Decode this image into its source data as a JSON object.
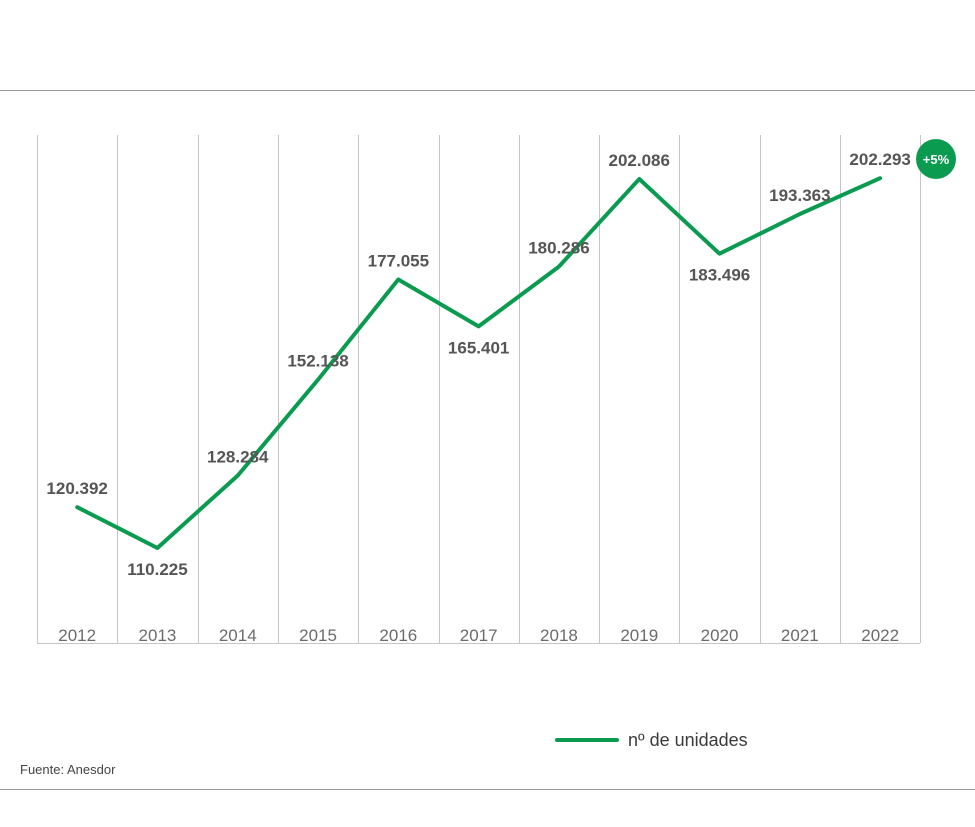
{
  "chart_data": {
    "type": "line",
    "categories": [
      "2012",
      "2013",
      "2014",
      "2015",
      "2016",
      "2017",
      "2018",
      "2019",
      "2020",
      "2021",
      "2022"
    ],
    "series": [
      {
        "name": "nº de unidades",
        "values": [
          120392,
          110225,
          128284,
          152138,
          177055,
          165401,
          180286,
          202086,
          183496,
          193363,
          202293
        ],
        "labels": [
          "120.392",
          "110.225",
          "128.284",
          "152.138",
          "177.055",
          "165.401",
          "180.286",
          "202.086",
          "183.496",
          "193.363",
          "202.293"
        ],
        "color": "#0a9b50"
      }
    ],
    "badge": {
      "text": "+5%",
      "color": "#0a9b50"
    },
    "grid": true
  },
  "legend": {
    "label": "nº de unidades"
  },
  "source": {
    "text": "Fuente: Anesdor"
  }
}
